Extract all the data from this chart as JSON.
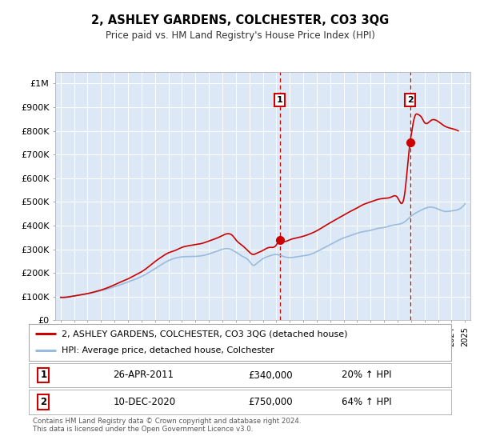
{
  "title": "2, ASHLEY GARDENS, COLCHESTER, CO3 3QG",
  "subtitle": "Price paid vs. HM Land Registry's House Price Index (HPI)",
  "fig_bg_color": "#ffffff",
  "plot_bg_color": "#dce8f5",
  "line1_color": "#cc0000",
  "line2_color": "#99bbdd",
  "transaction1_date": 2011.25,
  "transaction1_price": 340000,
  "transaction1_label": "1",
  "transaction1_text": "26-APR-2011",
  "transaction1_amount": "£340,000",
  "transaction1_hpi": "20% ↑ HPI",
  "transaction2_date": 2020.92,
  "transaction2_price": 750000,
  "transaction2_label": "2",
  "transaction2_text": "10-DEC-2020",
  "transaction2_amount": "£750,000",
  "transaction2_hpi": "64% ↑ HPI",
  "legend1": "2, ASHLEY GARDENS, COLCHESTER, CO3 3QG (detached house)",
  "legend2": "HPI: Average price, detached house, Colchester",
  "footer": "Contains HM Land Registry data © Crown copyright and database right 2024.\nThis data is licensed under the Open Government Licence v3.0.",
  "ylim": [
    0,
    1050000
  ],
  "xlim": [
    1994.6,
    2025.4
  ],
  "yticks": [
    0,
    100000,
    200000,
    300000,
    400000,
    500000,
    600000,
    700000,
    800000,
    900000,
    1000000
  ],
  "ytick_labels": [
    "£0",
    "£100K",
    "£200K",
    "£300K",
    "£400K",
    "£500K",
    "£600K",
    "£700K",
    "£800K",
    "£900K",
    "£1M"
  ]
}
